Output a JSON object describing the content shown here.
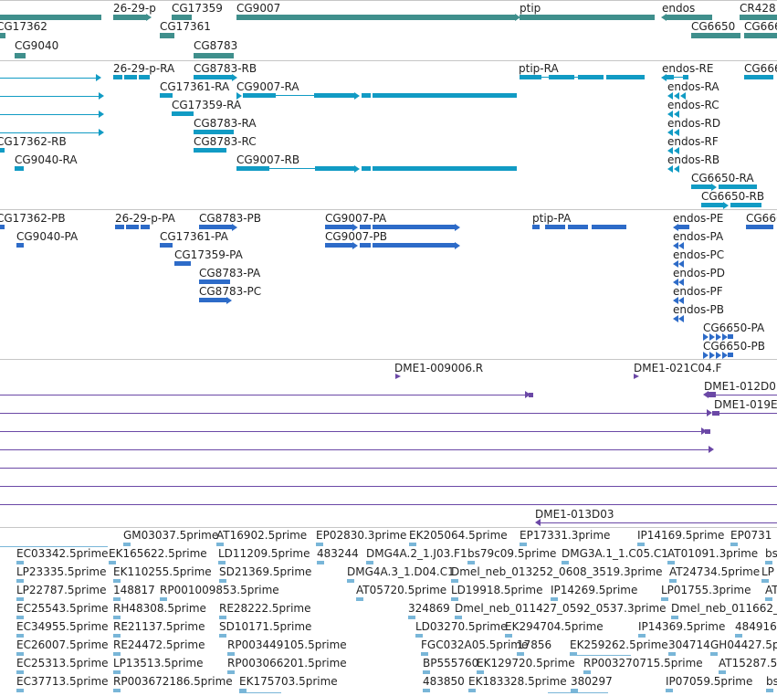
{
  "colors": {
    "gene": "#3f8f8c",
    "transcript": "#119bc4",
    "protein": "#2d6bc8",
    "probe": "#6b48a6",
    "est": "#79b6d8",
    "divider": "#c6c6c6"
  },
  "gene_track": {
    "labels": [
      "26-29-p",
      "CG17359",
      "CG9007",
      "ptip",
      "endos",
      "CR428",
      "CG17362",
      "CG17361",
      "CG9040",
      "CG8783",
      "CG6650",
      "CG666"
    ]
  },
  "transcript_track": {
    "labels": [
      "26-29-p-RA",
      "CG8783-RB",
      "ptip-RA",
      "endos-RE",
      "CG666",
      "CG17361-RA",
      "CG9007-RA",
      "endos-RA",
      "CG17359-RA",
      "endos-RC",
      "CG8783-RA",
      "endos-RD",
      "CG17362-RB",
      "CG8783-RC",
      "endos-RF",
      "CG9040-RA",
      "CG9007-RB",
      "endos-RB",
      "CG6650-RA",
      "CG6650-RB"
    ]
  },
  "protein_track": {
    "labels": [
      "CG17362-PB",
      "26-29-p-PA",
      "CG8783-PB",
      "CG9007-PA",
      "ptip-PA",
      "endos-PE",
      "CG666",
      "CG9040-PA",
      "CG17361-PA",
      "CG9007-PB",
      "endos-PA",
      "CG17359-PA",
      "endos-PC",
      "CG8783-PA",
      "endos-PD",
      "CG8783-PC",
      "endos-PF",
      "endos-PB",
      "CG6650-PA",
      "CG6650-PB"
    ]
  },
  "probe_track": {
    "labels": [
      "DME1-009006.R",
      "DME1-021C04.F",
      "DME1-012D0",
      "DME1-019E",
      "DME1-013D03"
    ]
  },
  "est_track": {
    "labels": [
      "GM03037.5prime",
      "AT16902.5prime",
      "EP02830.3prime",
      "EK205064.5prime",
      "EP17331.3prime",
      "IP14169.5prime",
      "EP0731",
      "EC03342.5prime",
      "EK165622.5prime",
      "LD11209.5prime",
      "483244",
      "DMG4A.2_1.J03.F1",
      "bs79c09.5prime",
      "DMG3A.1_1.C05.C1",
      "AT01091.3prime",
      "bs",
      "LP23335.5prime",
      "EK110255.5prime",
      "SD21369.5prime",
      "DMG4A.3_1.D04.C1",
      "Dmel_neb_013252_0608_3519.3prime",
      "AT24734.5prime",
      "LP",
      "LP22787.5prime",
      "148817",
      "RP001009853.5prime",
      "AT05720.5prime",
      "LD19918.5prime",
      "IP14269.5prime",
      "LP01755.3prime",
      "AT",
      "EC25543.5prime",
      "RH48308.5prime",
      "RE28222.5prime",
      "324869",
      "Dmel_neb_011427_0592_0537.3prime",
      "Dmel_neb_011662_",
      "EC34955.5prime",
      "RE21137.5prime",
      "SD10171.5prime",
      "LD03270.5prime",
      "EK294704.5prime",
      "IP14369.5prime",
      "484916",
      "EC26007.5prime",
      "RE24472.5prime",
      "RP003449105.5prime",
      "FGC032A05.5prime",
      "17856",
      "EK259262.5prime",
      "304714",
      "GH04427.5p",
      "EC25313.5prime",
      "LP13513.5prime",
      "RP003066201.5prime",
      "BP555760",
      "EK129720.5prime",
      "RP003270715.5prime",
      "AT15287.5p",
      "EC37713.5prime",
      "RP003672186.5prime",
      "EK175703.5prime",
      "483850",
      "EK183328.5prime",
      "380297",
      "IP07059.5prime",
      "bs"
    ]
  }
}
